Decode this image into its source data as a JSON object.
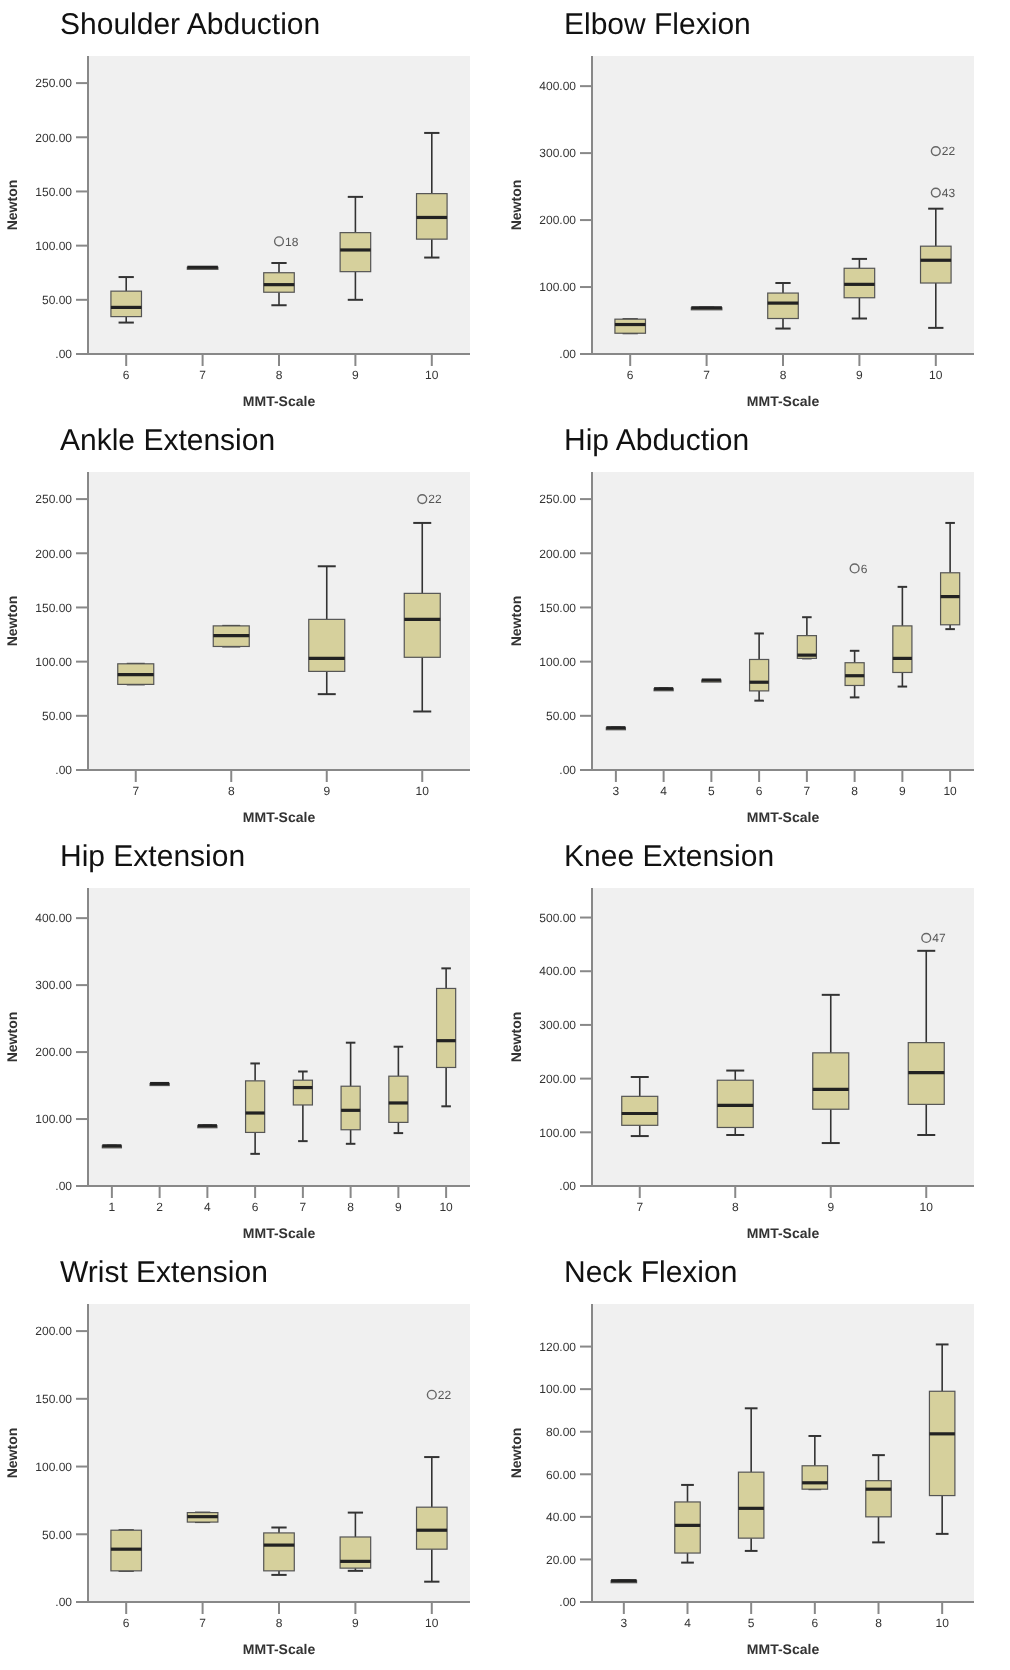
{
  "chart_data": [
    {
      "type": "box",
      "title": "Shoulder Abduction",
      "xlabel": "MMT-Scale",
      "ylabel": "Newton",
      "color": "#d6d09c",
      "categories": [
        "6",
        "7",
        "8",
        "9",
        "10"
      ],
      "ylim": [
        0,
        275
      ],
      "yticks": [
        {
          "value": 0,
          "label": ".00"
        },
        {
          "value": 50,
          "label": "50.00"
        },
        {
          "value": 100,
          "label": "100.00"
        },
        {
          "value": 150,
          "label": "150.00"
        },
        {
          "value": 200,
          "label": "200.00"
        },
        {
          "value": 250,
          "label": "250.00"
        }
      ],
      "boxes": [
        {
          "low": 29,
          "q1": 34.5,
          "median": 43,
          "q3": 58,
          "high": 71
        },
        {
          "low": 80,
          "q1": 80,
          "median": 80,
          "q3": 80,
          "high": 80
        },
        {
          "low": 45,
          "q1": 57,
          "median": 64,
          "q3": 75,
          "high": 84,
          "outliers": [
            104
          ]
        },
        {
          "low": 50,
          "q1": 76,
          "median": 96,
          "q3": 112,
          "high": 145
        },
        {
          "low": 89,
          "q1": 106,
          "median": 126,
          "q3": 148,
          "high": 204
        }
      ],
      "annotations": [
        "18"
      ]
    },
    {
      "type": "box",
      "title": "Elbow Flexion",
      "xlabel": "MMT-Scale",
      "ylabel": "Newton",
      "color": "#d6d09c",
      "categories": [
        "6",
        "7",
        "8",
        "9",
        "10"
      ],
      "ylim": [
        0,
        445
      ],
      "yticks": [
        {
          "value": 0,
          "label": ".00"
        },
        {
          "value": 100,
          "label": "100.00"
        },
        {
          "value": 200,
          "label": "200.00"
        },
        {
          "value": 300,
          "label": "300.00"
        },
        {
          "value": 400,
          "label": "400.00"
        }
      ],
      "boxes": [
        {
          "low": 31,
          "q1": 31,
          "median": 44,
          "q3": 52,
          "high": 52
        },
        {
          "low": 69,
          "q1": 69,
          "median": 69,
          "q3": 69,
          "high": 69
        },
        {
          "low": 38,
          "q1": 53,
          "median": 76,
          "q3": 91,
          "high": 106
        },
        {
          "low": 53,
          "q1": 84,
          "median": 104,
          "q3": 128,
          "high": 142
        },
        {
          "low": 39,
          "q1": 106,
          "median": 140,
          "q3": 161,
          "high": 217,
          "outliers": [
            241,
            303
          ]
        }
      ],
      "annotations": [
        "43",
        "22"
      ]
    },
    {
      "type": "box",
      "title": "Ankle Extension",
      "xlabel": "MMT-Scale",
      "ylabel": "Newton",
      "color": "#d6d09c",
      "categories": [
        "7",
        "8",
        "9",
        "10"
      ],
      "ylim": [
        0,
        275
      ],
      "yticks": [
        {
          "value": 0,
          "label": ".00"
        },
        {
          "value": 50,
          "label": "50.00"
        },
        {
          "value": 100,
          "label": "100.00"
        },
        {
          "value": 150,
          "label": "150.00"
        },
        {
          "value": 200,
          "label": "200.00"
        },
        {
          "value": 250,
          "label": "250.00"
        }
      ],
      "boxes": [
        {
          "low": 79,
          "q1": 79,
          "median": 88,
          "q3": 98,
          "high": 98
        },
        {
          "low": 114,
          "q1": 114,
          "median": 124,
          "q3": 133,
          "high": 133
        },
        {
          "low": 70,
          "q1": 91,
          "median": 103,
          "q3": 139,
          "high": 188
        },
        {
          "low": 54,
          "q1": 104,
          "median": 139,
          "q3": 163,
          "high": 228,
          "outliers": [
            250
          ]
        }
      ],
      "annotations": [
        "22"
      ]
    },
    {
      "type": "box",
      "title": "Hip Abduction",
      "xlabel": "MMT-Scale",
      "ylabel": "Newton",
      "color": "#d6d09c",
      "categories": [
        "3",
        "4",
        "5",
        "6",
        "7",
        "8",
        "9",
        "10"
      ],
      "ylim": [
        0,
        275
      ],
      "yticks": [
        {
          "value": 0,
          "label": ".00"
        },
        {
          "value": 50,
          "label": "50.00"
        },
        {
          "value": 100,
          "label": "100.00"
        },
        {
          "value": 150,
          "label": "150.00"
        },
        {
          "value": 200,
          "label": "200.00"
        },
        {
          "value": 250,
          "label": "250.00"
        }
      ],
      "boxes": [
        {
          "low": 39,
          "q1": 39,
          "median": 39,
          "q3": 39,
          "high": 39
        },
        {
          "low": 75,
          "q1": 75,
          "median": 75,
          "q3": 75,
          "high": 75
        },
        {
          "low": 83,
          "q1": 83,
          "median": 83,
          "q3": 83,
          "high": 83
        },
        {
          "low": 64,
          "q1": 73,
          "median": 81,
          "q3": 102,
          "high": 126
        },
        {
          "low": 103,
          "q1": 103,
          "median": 106,
          "q3": 124,
          "high": 141
        },
        {
          "low": 67,
          "q1": 78,
          "median": 87,
          "q3": 99,
          "high": 110,
          "outliers": [
            186
          ]
        },
        {
          "low": 77,
          "q1": 90,
          "median": 103,
          "q3": 133,
          "high": 169
        },
        {
          "low": 130,
          "q1": 134,
          "median": 160,
          "q3": 182,
          "high": 228
        }
      ],
      "annotations": [
        "6"
      ]
    },
    {
      "type": "box",
      "title": "Hip Extension",
      "xlabel": "MMT-Scale",
      "ylabel": "Newton",
      "color": "#d6d09c",
      "categories": [
        "1",
        "2",
        "4",
        "6",
        "7",
        "8",
        "9",
        "10"
      ],
      "ylim": [
        0,
        445
      ],
      "yticks": [
        {
          "value": 0,
          "label": ".00"
        },
        {
          "value": 100,
          "label": "100.00"
        },
        {
          "value": 200,
          "label": "200.00"
        },
        {
          "value": 300,
          "label": "300.00"
        },
        {
          "value": 400,
          "label": "400.00"
        }
      ],
      "boxes": [
        {
          "low": 60,
          "q1": 60,
          "median": 60,
          "q3": 60,
          "high": 60
        },
        {
          "low": 153,
          "q1": 153,
          "median": 153,
          "q3": 153,
          "high": 153
        },
        {
          "low": 90,
          "q1": 90,
          "median": 90,
          "q3": 90,
          "high": 90
        },
        {
          "low": 48,
          "q1": 80,
          "median": 109,
          "q3": 157,
          "high": 183
        },
        {
          "low": 67,
          "q1": 121,
          "median": 147,
          "q3": 158,
          "high": 171
        },
        {
          "low": 63,
          "q1": 84,
          "median": 113,
          "q3": 149,
          "high": 214
        },
        {
          "low": 79,
          "q1": 95,
          "median": 124,
          "q3": 164,
          "high": 208
        },
        {
          "low": 119,
          "q1": 177,
          "median": 217,
          "q3": 295,
          "high": 325
        }
      ]
    },
    {
      "type": "box",
      "title": "Knee Extension",
      "xlabel": "MMT-Scale",
      "ylabel": "Newton",
      "color": "#d6d09c",
      "categories": [
        "7",
        "8",
        "9",
        "10"
      ],
      "ylim": [
        0,
        555
      ],
      "yticks": [
        {
          "value": 0,
          "label": ".00"
        },
        {
          "value": 100,
          "label": "100.00"
        },
        {
          "value": 200,
          "label": "200.00"
        },
        {
          "value": 300,
          "label": "300.00"
        },
        {
          "value": 400,
          "label": "400.00"
        },
        {
          "value": 500,
          "label": "500.00"
        }
      ],
      "boxes": [
        {
          "low": 93,
          "q1": 113,
          "median": 135,
          "q3": 167,
          "high": 203
        },
        {
          "low": 95,
          "q1": 109,
          "median": 150,
          "q3": 197,
          "high": 215
        },
        {
          "low": 80,
          "q1": 143,
          "median": 180,
          "q3": 248,
          "high": 356
        },
        {
          "low": 95,
          "q1": 152,
          "median": 211,
          "q3": 267,
          "high": 438,
          "outliers": [
            462
          ]
        }
      ],
      "annotations": [
        "47"
      ]
    },
    {
      "type": "box",
      "title": "Wrist Extension",
      "xlabel": "MMT-Scale",
      "ylabel": "Newton",
      "color": "#d6d09c",
      "categories": [
        "6",
        "7",
        "8",
        "9",
        "10"
      ],
      "ylim": [
        0,
        220
      ],
      "yticks": [
        {
          "value": 0,
          "label": ".00"
        },
        {
          "value": 50,
          "label": "50.00"
        },
        {
          "value": 100,
          "label": "100.00"
        },
        {
          "value": 150,
          "label": "150.00"
        },
        {
          "value": 200,
          "label": "200.00"
        }
      ],
      "boxes": [
        {
          "low": 23,
          "q1": 23,
          "median": 39,
          "q3": 53,
          "high": 53
        },
        {
          "low": 59,
          "q1": 59,
          "median": 63,
          "q3": 66,
          "high": 66
        },
        {
          "low": 20,
          "q1": 23,
          "median": 42,
          "q3": 51,
          "high": 55
        },
        {
          "low": 23,
          "q1": 25,
          "median": 30,
          "q3": 48,
          "high": 66
        },
        {
          "low": 15,
          "q1": 39,
          "median": 53,
          "q3": 70,
          "high": 107,
          "outliers": [
            153
          ]
        }
      ],
      "annotations": [
        "22"
      ]
    },
    {
      "type": "box",
      "title": "Neck Flexion",
      "xlabel": "MMT-Scale",
      "ylabel": "Newton",
      "color": "#d6d09c",
      "categories": [
        "3",
        "4",
        "5",
        "6",
        "8",
        "10"
      ],
      "ylim": [
        0,
        140
      ],
      "yticks": [
        {
          "value": 0,
          "label": ".00"
        },
        {
          "value": 20,
          "label": "20.00"
        },
        {
          "value": 40,
          "label": "40.00"
        },
        {
          "value": 60,
          "label": "60.00"
        },
        {
          "value": 80,
          "label": "80.00"
        },
        {
          "value": 100,
          "label": "100.00"
        },
        {
          "value": 120,
          "label": "120.00"
        }
      ],
      "boxes": [
        {
          "low": 10,
          "q1": 10,
          "median": 10,
          "q3": 10,
          "high": 10
        },
        {
          "low": 18.5,
          "q1": 23,
          "median": 36,
          "q3": 47,
          "high": 55
        },
        {
          "low": 24,
          "q1": 30,
          "median": 44,
          "q3": 61,
          "high": 91
        },
        {
          "low": 53,
          "q1": 53,
          "median": 56,
          "q3": 64,
          "high": 78
        },
        {
          "low": 28,
          "q1": 40,
          "median": 53,
          "q3": 57,
          "high": 69
        },
        {
          "low": 32,
          "q1": 50,
          "median": 79,
          "q3": 99,
          "high": 121
        }
      ]
    }
  ]
}
